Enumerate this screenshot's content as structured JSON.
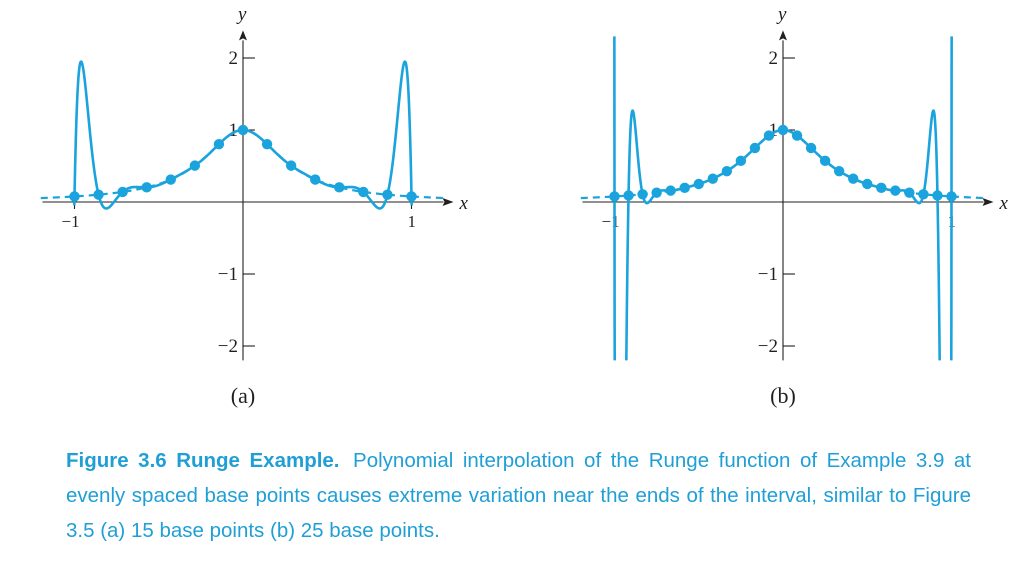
{
  "figure": {
    "label": "Figure 3.6 Runge Example.",
    "caption": "Polynomial interpolation of the Runge function of Example 3.9 at evenly spaced base points causes extreme variation near the ends of the interval, similar to Figure 3.5 (a) 15 base points (b) 25 base points.",
    "colors": {
      "curve": "#1aa3dc",
      "axis": "#231f20",
      "caption": "#1f9fd6"
    }
  },
  "chart_data": [
    {
      "type": "line",
      "panel_label": "(a)",
      "xlabel": "x",
      "ylabel": "y",
      "xlim": [
        -1.1,
        1.1
      ],
      "ylim": [
        -2.2,
        2.3
      ],
      "x_ticks": [
        {
          "value": -1,
          "label": "−1"
        },
        {
          "value": 1,
          "label": "1"
        }
      ],
      "y_ticks": [
        {
          "value": 2,
          "label": "2"
        },
        {
          "value": 1,
          "label": "1"
        },
        {
          "value": -1,
          "label": "−1"
        },
        {
          "value": -2,
          "label": "−2"
        }
      ],
      "function": "1/(1+12x^2)",
      "n_points": 15,
      "series": [
        {
          "role": "interpolant",
          "style": "solid"
        },
        {
          "role": "true function",
          "style": "dashed"
        },
        {
          "role": "base points",
          "style": "markers"
        }
      ]
    },
    {
      "type": "line",
      "panel_label": "(b)",
      "xlabel": "x",
      "ylabel": "y",
      "xlim": [
        -1.1,
        1.1
      ],
      "ylim": [
        -2.2,
        2.3
      ],
      "x_ticks": [
        {
          "value": -1,
          "label": "−1"
        },
        {
          "value": 1,
          "label": "1"
        }
      ],
      "y_ticks": [
        {
          "value": 2,
          "label": "2"
        },
        {
          "value": 1,
          "label": "1"
        },
        {
          "value": -1,
          "label": "−1"
        },
        {
          "value": -2,
          "label": "−2"
        }
      ],
      "function": "1/(1+12x^2)",
      "n_points": 25,
      "series": [
        {
          "role": "interpolant",
          "style": "solid"
        },
        {
          "role": "true function",
          "style": "dashed"
        },
        {
          "role": "base points",
          "style": "markers"
        }
      ]
    }
  ]
}
